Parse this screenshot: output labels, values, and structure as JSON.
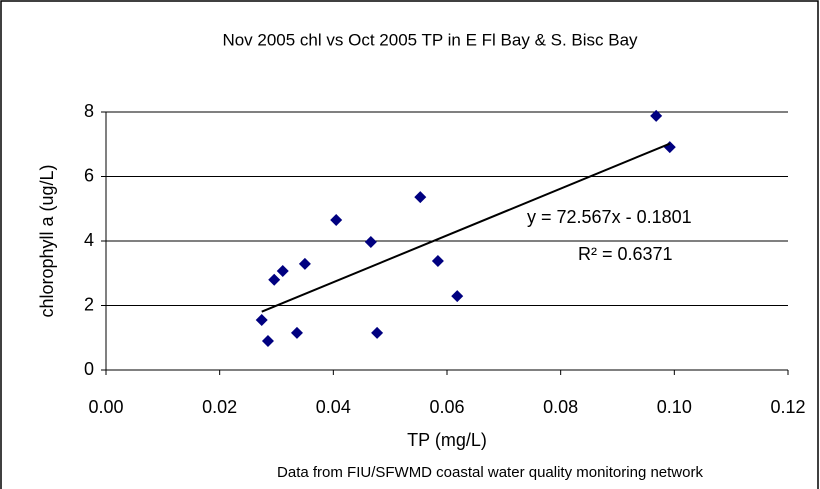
{
  "chart_data": {
    "type": "scatter",
    "title": "Nov 2005 chl vs Oct 2005 TP in E Fl Bay & S. Bisc Bay",
    "x_label": "TP (mg/L)",
    "y_label": "chlorophyll a (ug/L)",
    "note": "Data from FIU/SFWMD coastal water quality monitoring network",
    "series": [
      {
        "color": "#000080",
        "x": [
          0.0274,
          0.0336,
          0.0285,
          0.0296,
          0.0311,
          0.035,
          0.0405,
          0.0466,
          0.0477,
          0.0553,
          0.0584,
          0.0618,
          0.0968,
          0.0992
        ],
        "values": [
          1.55,
          1.15,
          0.9,
          2.8,
          3.07,
          3.29,
          4.65,
          3.97,
          1.15,
          5.36,
          3.38,
          2.29,
          7.88,
          6.91
        ]
      }
    ],
    "trendline": {
      "slope": 72.567,
      "intercept": -0.1801,
      "color": "#000000",
      "equation": "y = 72.567x - 0.1801",
      "r_squared": "R² = 0.6371"
    },
    "xlim": [
      0,
      0.12
    ],
    "xticks": [
      {
        "value": 0,
        "label": "0.00"
      },
      {
        "value": 0.02,
        "label": "0.02"
      },
      {
        "value": 0.04,
        "label": "0.04"
      },
      {
        "value": 0.06,
        "label": "0.06"
      },
      {
        "value": 0.08,
        "label": "0.08"
      },
      {
        "value": 0.1,
        "label": "0.10"
      },
      {
        "value": 0.12,
        "label": "0.12"
      }
    ],
    "ylim": [
      0,
      8
    ],
    "yticks": [
      0,
      2,
      4,
      6,
      8
    ],
    "grid": true
  }
}
